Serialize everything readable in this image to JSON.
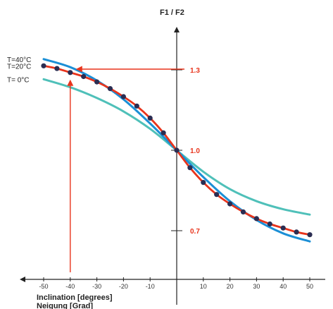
{
  "chart_data": {
    "type": "line",
    "ylabel": "F1 / F2",
    "xlabel_lines": [
      "Inclination [degrees]",
      "Neigung [Grad]"
    ],
    "xlim": [
      -50,
      50
    ],
    "ylim": [
      0.6,
      1.4
    ],
    "x_ticks": [
      -50,
      -40,
      -30,
      -20,
      -10,
      10,
      20,
      30,
      40,
      50
    ],
    "y_ticks": [
      {
        "value": 1.3,
        "label": "1.3"
      },
      {
        "value": 1.0,
        "label": "1.0"
      },
      {
        "value": 0.7,
        "label": "0.7"
      }
    ],
    "series": [
      {
        "name": "T=40°C",
        "color": "#1b8fd6",
        "x": [
          -50,
          -40,
          -30,
          -20,
          -10,
          0,
          10,
          20,
          30,
          40,
          50
        ],
        "y": [
          1.34,
          1.31,
          1.26,
          1.19,
          1.1,
          1.0,
          0.9,
          0.81,
          0.74,
          0.69,
          0.66
        ]
      },
      {
        "name": "T=20°C",
        "color": "#e8341c",
        "marker_color": "#2b2d52",
        "x": [
          -50,
          -45,
          -40,
          -35,
          -30,
          -25,
          -20,
          -15,
          -10,
          -5,
          0,
          5,
          10,
          15,
          20,
          25,
          30,
          35,
          40,
          45,
          50
        ],
        "y": [
          1.315,
          1.305,
          1.29,
          1.275,
          1.255,
          1.23,
          1.2,
          1.165,
          1.12,
          1.065,
          1.0,
          0.935,
          0.88,
          0.835,
          0.8,
          0.77,
          0.745,
          0.725,
          0.71,
          0.695,
          0.685
        ]
      },
      {
        "name": "T= 0°C",
        "color": "#4fc0b9",
        "x": [
          -50,
          -40,
          -30,
          -20,
          -10,
          0,
          10,
          20,
          30,
          40,
          50
        ],
        "y": [
          1.265,
          1.235,
          1.195,
          1.145,
          1.08,
          1.0,
          0.92,
          0.855,
          0.81,
          0.78,
          0.76
        ]
      }
    ],
    "annotation": {
      "color": "#e8341c",
      "x": -40,
      "y": 1.29
    }
  }
}
